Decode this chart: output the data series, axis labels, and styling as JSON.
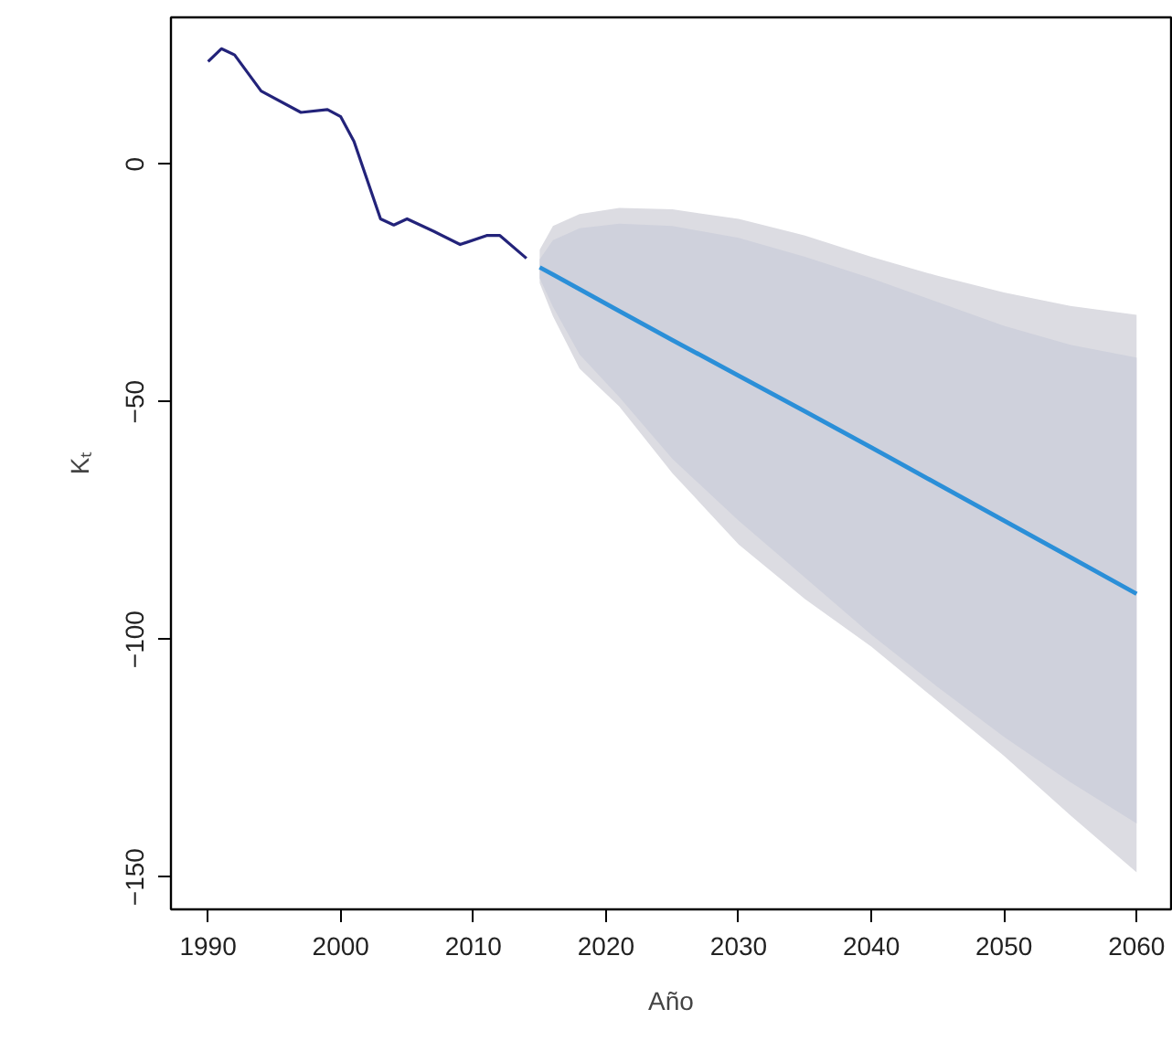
{
  "chart_data": {
    "type": "line",
    "xlabel": "Año",
    "ylabel": "Kₜ",
    "xlim": [
      1987.2,
      2062.6
    ],
    "ylim": [
      -156.8,
      30.9
    ],
    "xticks": [
      1990,
      2000,
      2010,
      2020,
      2030,
      2040,
      2050,
      2060
    ],
    "yticks": [
      -150,
      -100,
      -50,
      0
    ],
    "series": [
      {
        "color": "#23237a",
        "x": [
          1990,
          1991,
          1992,
          1994,
          1997,
          1999,
          2000,
          2001,
          2003,
          2004,
          2005,
          2007,
          2009,
          2011,
          2012,
          2014
        ],
        "values": [
          21.6,
          24.3,
          23,
          15.4,
          10.9,
          11.5,
          10,
          4.8,
          -11.5,
          -12.8,
          -11.5,
          -14.1,
          -16.9,
          -15,
          -15,
          -19.8
        ]
      },
      {
        "color": "#2b8fd8",
        "x": [
          2015,
          2016,
          2018,
          2021,
          2025,
          2030,
          2035,
          2040,
          2045,
          2050,
          2055,
          2060
        ],
        "values": [
          -21.7,
          -23.2,
          -26.3,
          -30.9,
          -37.0,
          -44.5,
          -52.0,
          -59.6,
          -67.3,
          -75.0,
          -82.7,
          -90.4
        ],
        "upper": [
          -18,
          -13,
          -10.5,
          -9.2,
          -9.5,
          -11.5,
          -15,
          -19.5,
          -23.5,
          -27,
          -29.8,
          -31.7
        ],
        "lower": [
          -25,
          -32,
          -43,
          -51,
          -65,
          -80,
          -91.5,
          -101.5,
          -113,
          -124.5,
          -137,
          -149
        ]
      },
      {
        "x": [
          2015,
          2016,
          2018,
          2021,
          2025,
          2030,
          2035,
          2040,
          2045,
          2050,
          2055,
          2060
        ],
        "values": [
          null,
          null,
          null,
          null,
          null,
          null,
          null,
          null,
          null,
          null,
          null,
          null
        ],
        "upper": [
          -20,
          -16,
          -13.5,
          -12.5,
          -13,
          -15.5,
          -19.5,
          -24,
          -29,
          -34,
          -38,
          -40.7
        ],
        "lower": [
          -24,
          -30,
          -40,
          -49,
          -62,
          -75,
          -87,
          -99,
          -110,
          -120.5,
          -130,
          -138.7
        ]
      }
    ]
  }
}
